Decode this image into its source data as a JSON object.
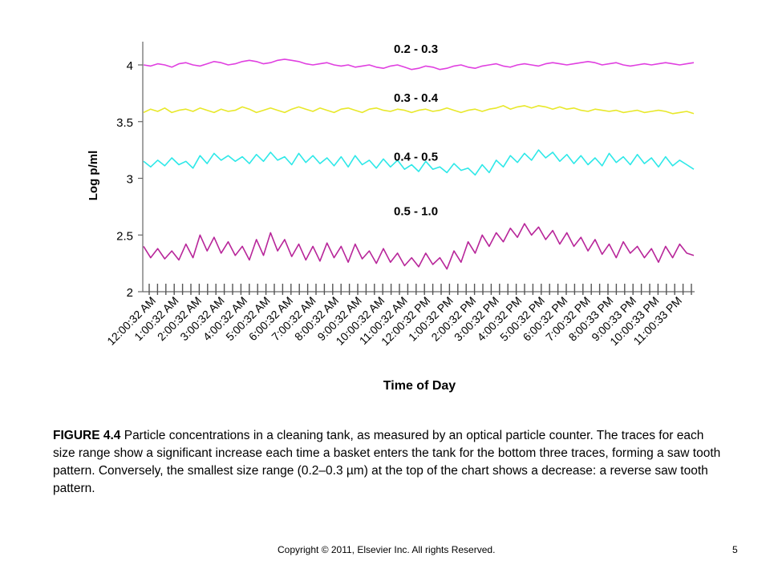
{
  "chart_data": {
    "type": "line",
    "title": "",
    "xlabel": "Time of Day",
    "ylabel": "Log p/ml",
    "ylim": [
      2,
      4.2
    ],
    "yticks": [
      2,
      2.5,
      3,
      3.5,
      4
    ],
    "ytick_labels": [
      "2",
      "2.5",
      "3",
      "3.5",
      "4"
    ],
    "x_tick_labels": [
      "12:00:32 AM",
      "1:00:32 AM",
      "2:00:32 AM",
      "3:00:32 AM",
      "4:00:32 AM",
      "5:00:32 AM",
      "6:00:32 AM",
      "7:00:32 AM",
      "8:00:32 AM",
      "9:00:32 AM",
      "10:00:32 AM",
      "11:00:32 AM",
      "12:00:32 PM",
      "1:00:32 PM",
      "2:00:32 PM",
      "3:00:32 PM",
      "4:00:32 PM",
      "5:00:32 PM",
      "6:00:32 PM",
      "7:00:32 PM",
      "8:00:33 PM",
      "9:00:33 PM",
      "10:00:33 PM",
      "11:00:33 PM"
    ],
    "grid": false,
    "series": [
      {
        "name": "0.2 - 0.3",
        "color": "#e040e0",
        "label_y": 4.14,
        "values": [
          4.0,
          3.99,
          4.01,
          4.0,
          3.98,
          4.01,
          4.02,
          4.0,
          3.99,
          4.01,
          4.03,
          4.02,
          4.0,
          4.01,
          4.03,
          4.04,
          4.03,
          4.01,
          4.02,
          4.04,
          4.05,
          4.04,
          4.03,
          4.01,
          4.0,
          4.01,
          4.02,
          4.0,
          3.99,
          4.0,
          3.98,
          3.99,
          4.0,
          3.98,
          3.97,
          3.99,
          4.0,
          3.98,
          3.96,
          3.97,
          3.99,
          3.98,
          3.96,
          3.97,
          3.99,
          4.0,
          3.98,
          3.97,
          3.99,
          4.0,
          4.01,
          3.99,
          3.98,
          4.0,
          4.01,
          4.0,
          3.99,
          4.01,
          4.02,
          4.01,
          4.0,
          4.01,
          4.02,
          4.03,
          4.02,
          4.0,
          4.01,
          4.02,
          4.0,
          3.99,
          4.0,
          4.01,
          4.0,
          4.01,
          4.02,
          4.01,
          4.0,
          4.01,
          4.02
        ]
      },
      {
        "name": "0.3 - 0.4",
        "color": "#e8e82a",
        "label_y": 3.71,
        "values": [
          3.58,
          3.61,
          3.59,
          3.62,
          3.58,
          3.6,
          3.61,
          3.59,
          3.62,
          3.6,
          3.58,
          3.61,
          3.59,
          3.6,
          3.63,
          3.61,
          3.58,
          3.6,
          3.62,
          3.6,
          3.58,
          3.61,
          3.63,
          3.61,
          3.59,
          3.62,
          3.6,
          3.58,
          3.61,
          3.62,
          3.6,
          3.58,
          3.61,
          3.62,
          3.6,
          3.59,
          3.61,
          3.6,
          3.58,
          3.6,
          3.61,
          3.59,
          3.6,
          3.62,
          3.6,
          3.58,
          3.6,
          3.61,
          3.59,
          3.61,
          3.62,
          3.64,
          3.61,
          3.63,
          3.64,
          3.62,
          3.64,
          3.63,
          3.61,
          3.63,
          3.61,
          3.62,
          3.6,
          3.59,
          3.61,
          3.6,
          3.59,
          3.6,
          3.58,
          3.59,
          3.6,
          3.58,
          3.59,
          3.6,
          3.59,
          3.57,
          3.58,
          3.59,
          3.57
        ]
      },
      {
        "name": "0.4 - 0.5",
        "color": "#2ee8e8",
        "label_y": 3.19,
        "values": [
          3.15,
          3.1,
          3.16,
          3.11,
          3.18,
          3.12,
          3.15,
          3.09,
          3.2,
          3.13,
          3.22,
          3.16,
          3.2,
          3.15,
          3.19,
          3.13,
          3.21,
          3.15,
          3.23,
          3.16,
          3.19,
          3.12,
          3.22,
          3.14,
          3.2,
          3.13,
          3.18,
          3.11,
          3.19,
          3.1,
          3.2,
          3.12,
          3.16,
          3.09,
          3.17,
          3.1,
          3.16,
          3.08,
          3.12,
          3.06,
          3.15,
          3.08,
          3.1,
          3.05,
          3.13,
          3.07,
          3.09,
          3.03,
          3.12,
          3.05,
          3.16,
          3.1,
          3.2,
          3.14,
          3.22,
          3.16,
          3.25,
          3.18,
          3.23,
          3.15,
          3.21,
          3.13,
          3.2,
          3.12,
          3.18,
          3.11,
          3.22,
          3.14,
          3.19,
          3.12,
          3.21,
          3.13,
          3.18,
          3.1,
          3.19,
          3.11,
          3.16,
          3.12,
          3.08
        ]
      },
      {
        "name": "0.5 - 1.0",
        "color": "#b8269a",
        "label_y": 2.71,
        "values": [
          2.4,
          2.3,
          2.38,
          2.29,
          2.36,
          2.28,
          2.42,
          2.3,
          2.5,
          2.36,
          2.48,
          2.34,
          2.44,
          2.32,
          2.4,
          2.28,
          2.46,
          2.32,
          2.52,
          2.36,
          2.46,
          2.31,
          2.42,
          2.28,
          2.4,
          2.27,
          2.43,
          2.3,
          2.4,
          2.26,
          2.42,
          2.29,
          2.36,
          2.25,
          2.38,
          2.26,
          2.34,
          2.23,
          2.3,
          2.22,
          2.34,
          2.24,
          2.3,
          2.2,
          2.36,
          2.26,
          2.44,
          2.34,
          2.5,
          2.4,
          2.52,
          2.44,
          2.56,
          2.48,
          2.6,
          2.5,
          2.57,
          2.46,
          2.54,
          2.42,
          2.52,
          2.4,
          2.48,
          2.36,
          2.46,
          2.33,
          2.42,
          2.3,
          2.44,
          2.34,
          2.4,
          2.3,
          2.38,
          2.26,
          2.4,
          2.3,
          2.42,
          2.34,
          2.32
        ]
      }
    ]
  },
  "caption": {
    "figure_label": "FIGURE 4.4",
    "text": " Particle concentrations in a cleaning tank, as measured by an optical particle counter. The traces for each size range show a significant increase each time a basket enters the tank for the bottom three traces, forming a saw tooth pattern. Conversely, the smallest size range (0.2–0.3 µm) at the top of the chart shows a decrease: a reverse saw tooth pattern."
  },
  "footer": {
    "copyright": "Copyright © 2011,  Elsevier Inc. All rights Reserved.",
    "page_number": "5"
  }
}
